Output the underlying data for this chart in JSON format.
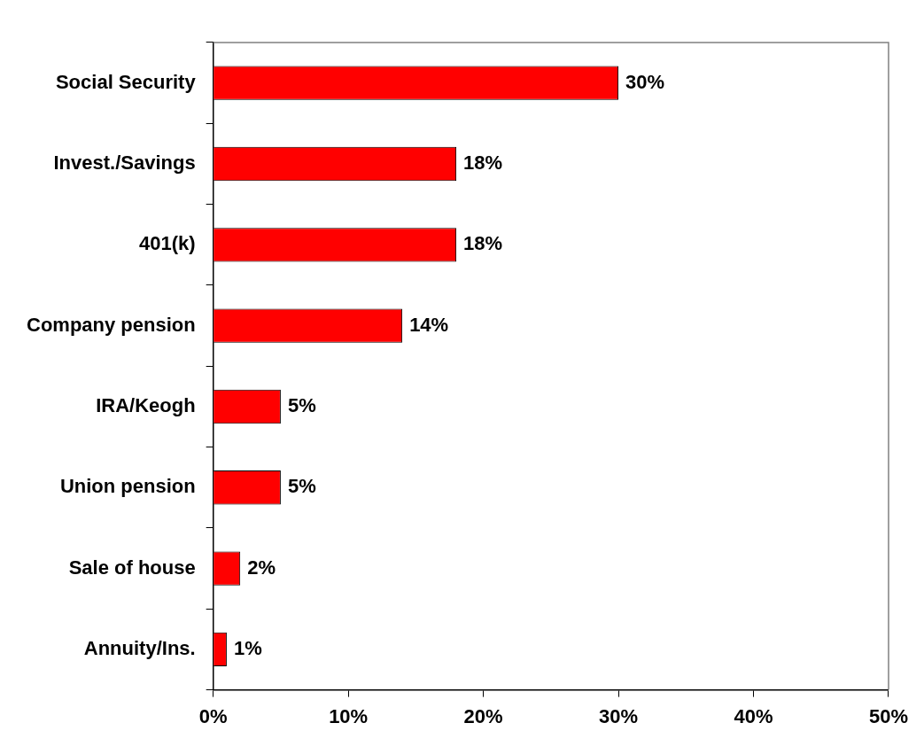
{
  "chart_data": {
    "type": "bar",
    "orientation": "horizontal",
    "categories": [
      "Social Security",
      "Invest./Savings",
      "401(k)",
      "Company pension",
      "IRA/Keogh",
      "Union pension",
      "Sale of house",
      "Annuity/Ins."
    ],
    "values": [
      30,
      18,
      18,
      14,
      5,
      5,
      2,
      1
    ],
    "value_labels": [
      "30%",
      "18%",
      "18%",
      "14%",
      "5%",
      "5%",
      "2%",
      "1%"
    ],
    "color": "#ff0000",
    "xlim": [
      0,
      50
    ],
    "xticks": [
      {
        "value": 0,
        "label": "0%"
      },
      {
        "value": 10,
        "label": "10%"
      },
      {
        "value": 20,
        "label": "20%"
      },
      {
        "value": 30,
        "label": "30%"
      },
      {
        "value": 40,
        "label": "40%"
      },
      {
        "value": 50,
        "label": "50%"
      }
    ],
    "grid": false,
    "legend": false
  }
}
